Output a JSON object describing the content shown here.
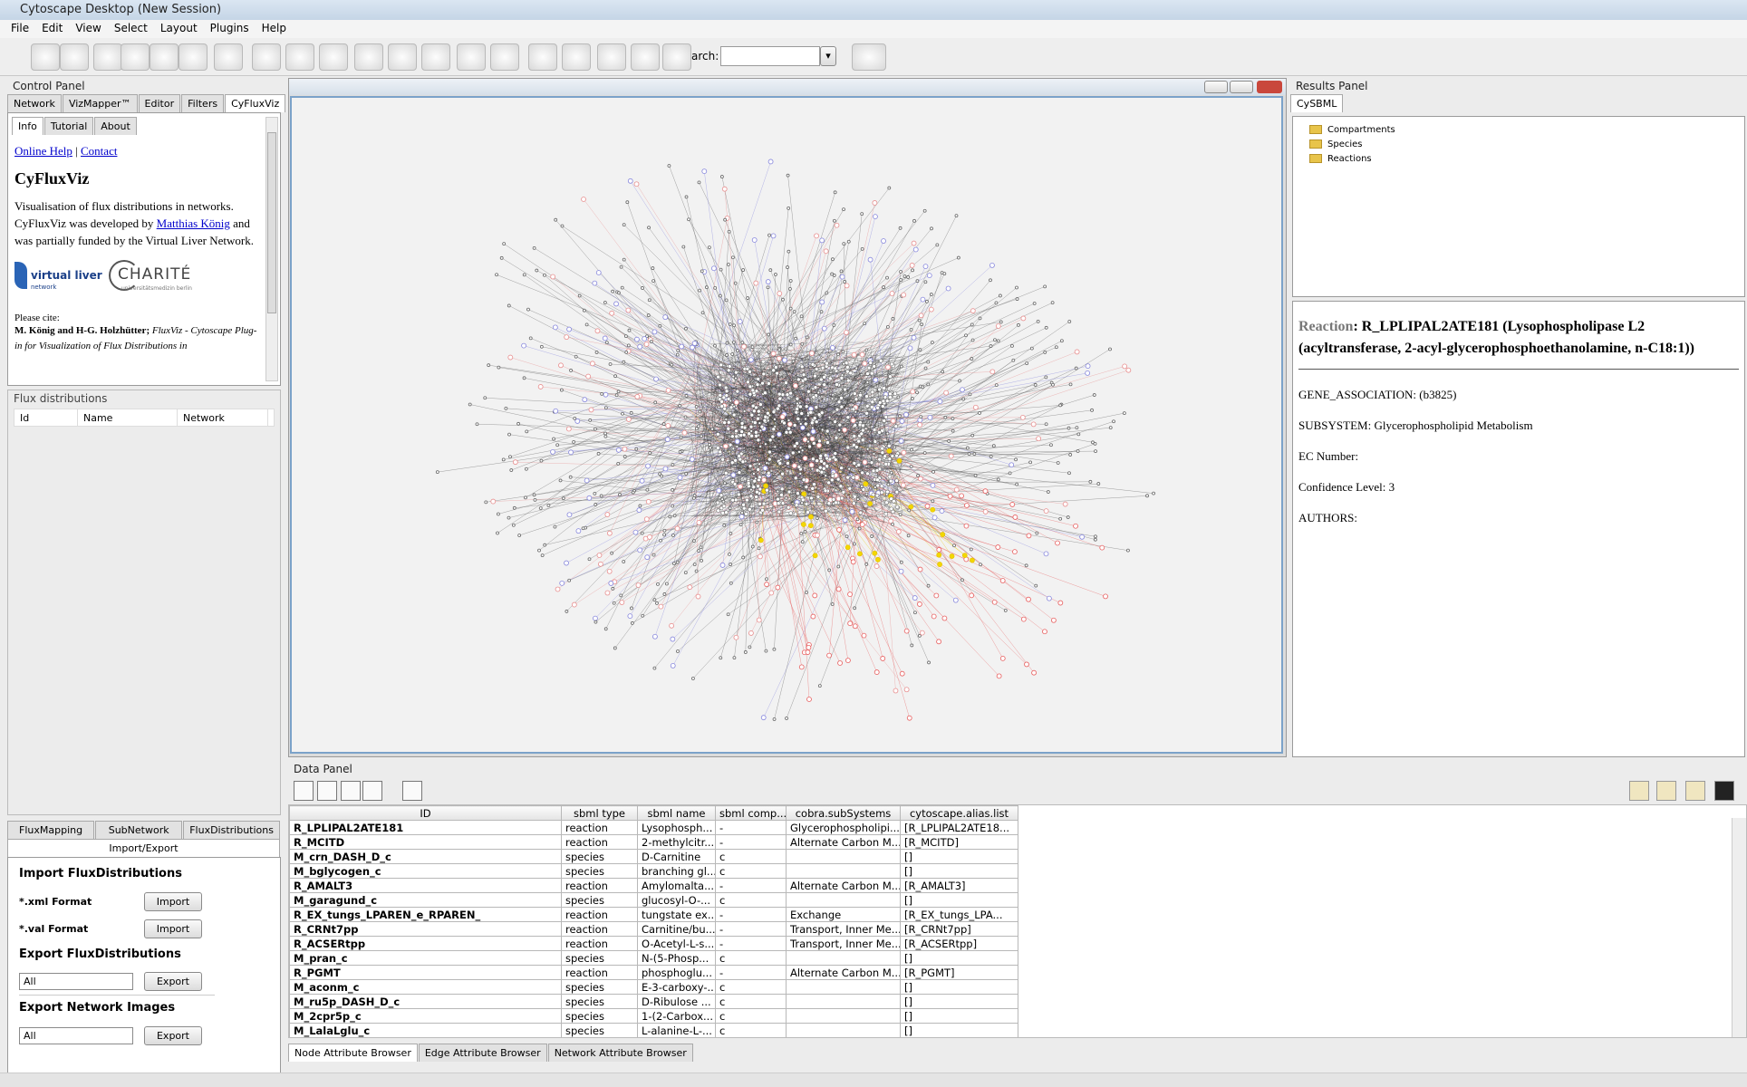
{
  "window": {
    "title": "Cytoscape Desktop (New Session)"
  },
  "menu": [
    "File",
    "Edit",
    "View",
    "Select",
    "Layout",
    "Plugins",
    "Help"
  ],
  "toolbar": {
    "search_label": "Search:"
  },
  "control_panel": {
    "title": "Control Panel",
    "tabs": [
      "Network",
      "VizMapper™",
      "Editor",
      "Filters",
      "CyFluxViz"
    ],
    "subtabs": [
      "Info",
      "Tutorial",
      "About"
    ],
    "links": [
      "Online Help",
      "Contact"
    ],
    "heading": "CyFluxViz",
    "text1": "Visualisation of flux distributions in networks. CyFluxViz was developed by",
    "author": "Matthias König",
    "text2": "and was partially funded by the Virtual Liver Network.",
    "logos": [
      "virtual liver",
      "network",
      "CHARITÉ",
      "universitätsmedizin berlin"
    ],
    "cite_label": "Please cite:",
    "cite_authors": "M. König and H-G. Holzhütter;",
    "cite_title": "FluxViz - Cytoscape Plug-in for Visualization of Flux Distributions in"
  },
  "flux_distributions": {
    "title": "Flux distributions",
    "columns": [
      "Id",
      "Name",
      "Network"
    ]
  },
  "cyfluxviz_tabs": [
    "FluxMapping",
    "SubNetwork",
    "FluxDistributions",
    "Import/Export"
  ],
  "import": {
    "title": "Import FluxDistributions",
    "rows": [
      {
        "label": "*.xml Format",
        "button": "Import"
      },
      {
        "label": "*.val Format",
        "button": "Import"
      }
    ]
  },
  "export": {
    "title": "Export FluxDistributions",
    "select": "All",
    "button": "Export"
  },
  "export_images": {
    "title": "Export Network Images",
    "select": "All",
    "button": "Export"
  },
  "results_panel": {
    "title": "Results Panel",
    "tab": "CySBML",
    "tree": [
      "Compartments",
      "Species",
      "Reactions"
    ],
    "reaction_label": "Reaction",
    "reaction_text": ": R_LPLIPAL2ATE181 (Lysophospholipase L2 (acyltransferase, 2-acyl-glycerophosphoethanolamine, n-C18:1))",
    "fields": [
      "GENE_ASSOCIATION: (b3825)",
      "SUBSYSTEM: Glycerophospholipid Metabolism",
      "EC Number:",
      "Confidence Level: 3",
      "AUTHORS:"
    ]
  },
  "data_panel": {
    "title": "Data Panel",
    "columns": [
      "ID",
      "sbml type",
      "sbml name",
      "sbml comp...",
      "cobra.subSystems",
      "cytoscape.alias.list"
    ],
    "rows": [
      [
        "R_LPLIPAL2ATE181",
        "reaction",
        "Lysophosph...",
        "-",
        "Glycerophospholipi...",
        "[R_LPLIPAL2ATE18..."
      ],
      [
        "R_MCITD",
        "reaction",
        "2-methylcitr...",
        "-",
        "Alternate Carbon M...",
        "[R_MCITD]"
      ],
      [
        "M_crn_DASH_D_c",
        "species",
        "D-Carnitine",
        "c",
        null,
        "[]"
      ],
      [
        "M_bglycogen_c",
        "species",
        "branching gl...",
        "c",
        null,
        "[]"
      ],
      [
        "R_AMALT3",
        "reaction",
        "Amylomalta...",
        "-",
        "Alternate Carbon M...",
        "[R_AMALT3]"
      ],
      [
        "M_garagund_c",
        "species",
        "glucosyl-O-...",
        "c",
        null,
        "[]"
      ],
      [
        "R_EX_tungs_LPAREN_e_RPAREN_",
        "reaction",
        "tungstate ex...",
        "-",
        "Exchange",
        "[R_EX_tungs_LPA..."
      ],
      [
        "R_CRNt7pp",
        "reaction",
        "Carnitine/bu...",
        "-",
        "Transport, Inner Me...",
        "[R_CRNt7pp]"
      ],
      [
        "R_ACSERtpp",
        "reaction",
        "O-Acetyl-L-s...",
        "-",
        "Transport, Inner Me...",
        "[R_ACSERtpp]"
      ],
      [
        "M_pran_c",
        "species",
        "N-(5-Phosp...",
        "c",
        null,
        "[]"
      ],
      [
        "R_PGMT",
        "reaction",
        "phosphoglu...",
        "-",
        "Alternate Carbon M...",
        "[R_PGMT]"
      ],
      [
        "M_aconm_c",
        "species",
        "E-3-carboxy-...",
        "c",
        null,
        "[]"
      ],
      [
        "M_ru5p_DASH_D_c",
        "species",
        "D-Ribulose ...",
        "c",
        null,
        "[]"
      ],
      [
        "M_2cpr5p_c",
        "species",
        "1-(2-Carbox...",
        "c",
        null,
        "[]"
      ],
      [
        "M_LalaLglu_c",
        "species",
        "L-alanine-L-...",
        "c",
        null,
        "[]"
      ]
    ],
    "tabs": [
      "Node Attribute Browser",
      "Edge Attribute Browser",
      "Network Attribute Browser"
    ]
  }
}
